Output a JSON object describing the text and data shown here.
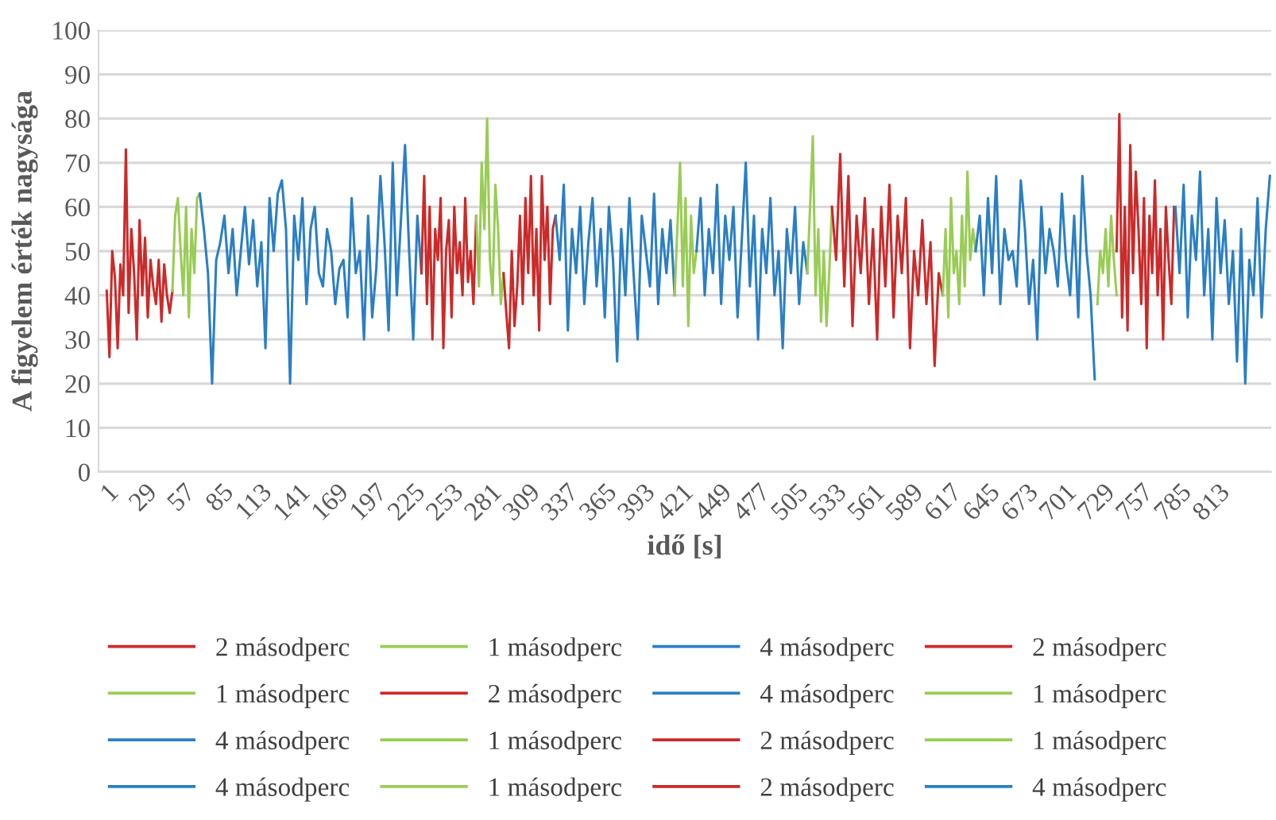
{
  "chart_data": {
    "type": "line",
    "xlabel": "idő [s]",
    "ylabel": "A figyelem érték nagysága",
    "xlim": [
      -5,
      852
    ],
    "xticks": [
      1,
      29,
      57,
      85,
      113,
      141,
      169,
      197,
      225,
      253,
      281,
      309,
      337,
      365,
      393,
      421,
      449,
      477,
      505,
      533,
      561,
      589,
      617,
      645,
      673,
      701,
      729,
      757,
      785,
      813
    ],
    "ylim": [
      0,
      100
    ],
    "yticks": [
      0,
      10,
      20,
      30,
      40,
      50,
      60,
      70,
      80,
      90,
      100
    ],
    "grid": "y",
    "legend": "bottom",
    "marker": "none",
    "line_style": "solid",
    "series": [
      {
        "name": "2 másodperc",
        "color": "#cc2a2a",
        "x": [
          1,
          3,
          5,
          7,
          9,
          11,
          13,
          15,
          17,
          19,
          21,
          23,
          25,
          27,
          29,
          31,
          33,
          35,
          37,
          39,
          41,
          43,
          45,
          47,
          49
        ],
        "values": [
          41,
          26,
          50,
          44,
          28,
          47,
          40,
          73,
          36,
          55,
          45,
          30,
          57,
          40,
          53,
          35,
          48,
          42,
          38,
          48,
          34,
          47,
          40,
          36,
          41
        ]
      },
      {
        "name": "1 másodperc",
        "color": "#99cc55",
        "x": [
          49,
          51,
          53,
          55,
          57,
          59,
          61,
          63,
          65,
          67,
          69
        ],
        "values": [
          41,
          58,
          62,
          50,
          40,
          60,
          35,
          55,
          45,
          62,
          63
        ]
      },
      {
        "name": "4 másodperc",
        "color": "#2a7fc4",
        "x": [
          69,
          72,
          75,
          78,
          81,
          84,
          87,
          90,
          93,
          96,
          99,
          102,
          105,
          108,
          111,
          114,
          117,
          120,
          123,
          126,
          129,
          132,
          135,
          138,
          141,
          144,
          147,
          150,
          153,
          156,
          159,
          162,
          165,
          168,
          171,
          174,
          177,
          180,
          183,
          186,
          189,
          192,
          195,
          198,
          201,
          204,
          207,
          210,
          213,
          216,
          219,
          222,
          225,
          228,
          231
        ],
        "values": [
          63,
          55,
          45,
          20,
          48,
          52,
          58,
          45,
          55,
          40,
          50,
          60,
          47,
          57,
          42,
          52,
          28,
          62,
          50,
          63,
          66,
          55,
          20,
          58,
          48,
          62,
          38,
          55,
          60,
          45,
          42,
          55,
          50,
          38,
          46,
          48,
          35,
          62,
          45,
          50,
          30,
          58,
          35,
          46,
          67,
          52,
          32,
          70,
          40,
          57,
          74,
          50,
          30,
          58,
          45
        ]
      },
      {
        "name": "2 másodperc",
        "color": "#cc2a2a",
        "x": [
          231,
          233,
          235,
          237,
          239,
          241,
          243,
          245,
          247,
          249,
          251,
          253,
          255,
          257,
          259,
          261,
          263,
          265,
          267,
          269,
          271
        ],
        "values": [
          45,
          67,
          38,
          60,
          30,
          55,
          48,
          62,
          28,
          50,
          57,
          35,
          60,
          45,
          52,
          40,
          62,
          43,
          50,
          38,
          58
        ]
      },
      {
        "name": "1 másodperc",
        "color": "#99cc55",
        "x": [
          271,
          273,
          275,
          277,
          279,
          281,
          283,
          285,
          287,
          289,
          291
        ],
        "values": [
          58,
          42,
          70,
          55,
          80,
          48,
          40,
          65,
          55,
          38,
          45
        ]
      },
      {
        "name": "2 másodperc",
        "color": "#cc2a2a",
        "x": [
          291,
          293,
          295,
          297,
          299,
          301,
          303,
          305,
          307,
          309,
          311,
          313,
          315,
          317,
          319,
          321,
          323,
          325,
          327,
          329
        ],
        "values": [
          45,
          36,
          28,
          50,
          33,
          42,
          58,
          38,
          62,
          45,
          67,
          40,
          55,
          32,
          67,
          48,
          60,
          38,
          55,
          58
        ]
      },
      {
        "name": "4 másodperc",
        "color": "#2a7fc4",
        "x": [
          329,
          332,
          335,
          338,
          341,
          344,
          347,
          350,
          353,
          356,
          359,
          362,
          365,
          368,
          371,
          374,
          377,
          380,
          383,
          386,
          389,
          392,
          395,
          398,
          401,
          404,
          407,
          410,
          413,
          416
        ],
        "values": [
          58,
          48,
          65,
          32,
          55,
          45,
          60,
          38,
          52,
          62,
          42,
          55,
          35,
          60,
          48,
          25,
          55,
          40,
          62,
          45,
          30,
          58,
          50,
          42,
          63,
          38,
          55,
          45,
          57,
          40
        ]
      },
      {
        "name": "1 másodperc",
        "color": "#99cc55",
        "x": [
          416,
          418,
          420,
          422,
          424,
          426,
          428,
          430,
          432
        ],
        "values": [
          40,
          55,
          70,
          42,
          62,
          33,
          58,
          45,
          50
        ]
      },
      {
        "name": "4 másodperc",
        "color": "#2a7fc4",
        "x": [
          432,
          435,
          438,
          441,
          444,
          447,
          450,
          453,
          456,
          459,
          462,
          465,
          468,
          471,
          474,
          477,
          480,
          483,
          486,
          489,
          492,
          495,
          498,
          501,
          504,
          507,
          510,
          513
        ],
        "values": [
          50,
          62,
          40,
          55,
          45,
          65,
          38,
          58,
          48,
          60,
          35,
          52,
          70,
          42,
          58,
          30,
          55,
          45,
          62,
          40,
          50,
          28,
          55,
          45,
          60,
          38,
          52,
          45
        ]
      },
      {
        "name": "1 másodperc",
        "color": "#99cc55",
        "x": [
          513,
          515,
          517,
          519,
          521,
          523,
          525,
          527,
          529,
          531
        ],
        "values": [
          45,
          60,
          76,
          40,
          55,
          34,
          50,
          33,
          45,
          60
        ]
      },
      {
        "name": "2 másodperc",
        "color": "#cc2a2a",
        "x": [
          531,
          534,
          537,
          540,
          543,
          546,
          549,
          552,
          555,
          558,
          561,
          564,
          567,
          570,
          573,
          576,
          579,
          582,
          585,
          588,
          591,
          594,
          597,
          600,
          603,
          606,
          609,
          612
        ],
        "values": [
          60,
          48,
          72,
          42,
          67,
          33,
          58,
          45,
          62,
          38,
          55,
          30,
          60,
          42,
          65,
          35,
          58,
          45,
          62,
          28,
          50,
          40,
          57,
          38,
          52,
          24,
          45,
          40
        ]
      },
      {
        "name": "1 másodperc",
        "color": "#99cc55",
        "x": [
          612,
          614,
          616,
          618,
          620,
          622,
          624,
          626,
          628,
          630,
          632,
          634,
          636
        ],
        "values": [
          40,
          55,
          35,
          62,
          45,
          50,
          38,
          58,
          42,
          68,
          48,
          55,
          50
        ]
      },
      {
        "name": "4 másodperc",
        "color": "#2a7fc4",
        "x": [
          636,
          639,
          642,
          645,
          648,
          651,
          654,
          657,
          660,
          663,
          666,
          669,
          672,
          675,
          678,
          681,
          684,
          687,
          690,
          693,
          696,
          699,
          702,
          705,
          708,
          711,
          714,
          717,
          720,
          723
        ],
        "values": [
          50,
          58,
          40,
          62,
          45,
          67,
          38,
          55,
          48,
          50,
          42,
          66,
          55,
          38,
          48,
          30,
          60,
          45,
          55,
          50,
          42,
          63,
          48,
          40,
          58,
          35,
          67,
          50,
          40,
          21
        ]
      },
      {
        "name": "1 másodperc",
        "color": "#99cc55",
        "x": [
          725,
          727,
          729,
          731,
          733,
          735,
          737,
          739
        ],
        "values": [
          38,
          50,
          45,
          55,
          42,
          58,
          48,
          40
        ]
      },
      {
        "name": "2 másodperc",
        "color": "#cc2a2a",
        "x": [
          739,
          741,
          743,
          745,
          747,
          749,
          751,
          753,
          755,
          757,
          759,
          761,
          763,
          765,
          767,
          769,
          771,
          773,
          775,
          777,
          779,
          781
        ],
        "values": [
          50,
          81,
          35,
          60,
          32,
          74,
          45,
          68,
          55,
          38,
          62,
          28,
          58,
          45,
          66,
          40,
          55,
          30,
          60,
          48,
          38,
          60
        ]
      },
      {
        "name": "4 másodperc",
        "color": "#2a7fc4",
        "x": [
          782,
          785,
          788,
          791,
          794,
          797,
          800,
          803,
          806,
          809,
          812,
          815,
          818,
          821,
          824,
          827,
          830,
          833,
          836,
          839,
          842,
          845,
          848,
          851
        ],
        "values": [
          60,
          45,
          65,
          35,
          58,
          48,
          68,
          40,
          55,
          30,
          62,
          45,
          57,
          38,
          50,
          25,
          55,
          20,
          48,
          40,
          62,
          35,
          55,
          67
        ]
      }
    ]
  }
}
